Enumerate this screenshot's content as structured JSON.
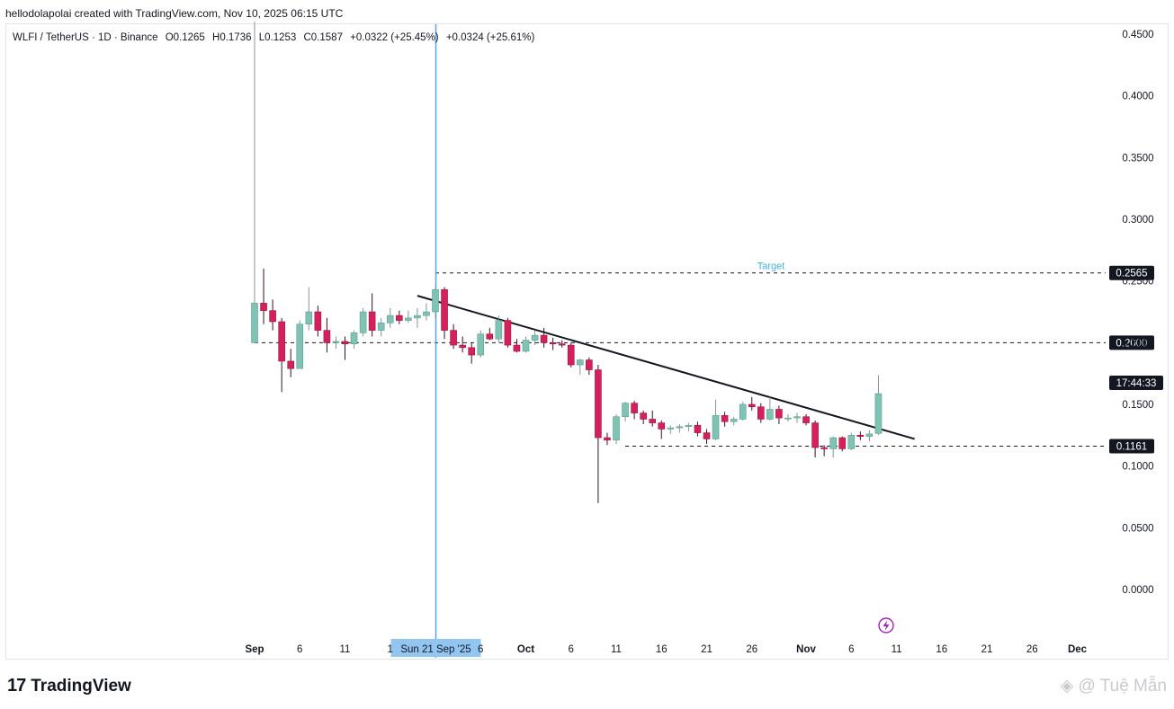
{
  "header": {
    "credit": "hellodolapolai created with TradingView.com, Nov 10, 2025 06:15 UTC"
  },
  "legend": {
    "symbol": "WLFI / TetherUS · 1D · Binance",
    "open": "O0.1265",
    "high": "H0.1736",
    "low": "L0.1253",
    "close": "C0.1587",
    "change": "+0.0322 (+25.45%)",
    "change2": "+0.0324 (+25.61%)"
  },
  "colors": {
    "up": "#7ec3b3",
    "down": "#d6205b",
    "crosshair": "#5aa5e6",
    "target": "#40b2d6"
  },
  "brand": {
    "logo": "17",
    "name": "TradingView"
  },
  "watermark": "◈ @ Tuệ Mẫn",
  "chart_data": {
    "type": "candlestick",
    "y_ticks": [
      "0.4500",
      "0.4000",
      "0.3500",
      "0.3000",
      "0.2500",
      "0.2000",
      "0.1500",
      "0.1000",
      "0.0500",
      "0.0000"
    ],
    "y_tick_values": [
      0.45,
      0.4,
      0.35,
      0.3,
      0.25,
      0.2,
      0.15,
      0.1,
      0.05,
      0.0
    ],
    "ylim": [
      -0.045,
      0.47
    ],
    "x_ticks": [
      {
        "label": "Sep",
        "day": 0,
        "month": true
      },
      {
        "label": "6",
        "day": 5
      },
      {
        "label": "11",
        "day": 10
      },
      {
        "label": "1",
        "day": 15
      },
      {
        "label": "6",
        "day": 25
      },
      {
        "label": "Oct",
        "day": 30,
        "month": true
      },
      {
        "label": "6",
        "day": 35
      },
      {
        "label": "11",
        "day": 40
      },
      {
        "label": "16",
        "day": 45
      },
      {
        "label": "21",
        "day": 50
      },
      {
        "label": "26",
        "day": 55
      },
      {
        "label": "Nov",
        "day": 61,
        "month": true
      },
      {
        "label": "6",
        "day": 66
      },
      {
        "label": "11",
        "day": 71
      },
      {
        "label": "16",
        "day": 76
      },
      {
        "label": "21",
        "day": 81
      },
      {
        "label": "26",
        "day": 86
      },
      {
        "label": "Dec",
        "day": 91,
        "month": true
      }
    ],
    "crosshair": {
      "label": "Sun 21 Sep '25",
      "day": 20
    },
    "levels": [
      {
        "value": 0.2565,
        "label": "0.2565",
        "from_day": 20,
        "text": "Target"
      },
      {
        "value": 0.2,
        "label": "0.2000",
        "from_day": 0
      },
      {
        "value": 0.1161,
        "label": "0.1161",
        "from_day": 41
      }
    ],
    "countdown": {
      "label": "17:44:33",
      "value": 0.1587
    },
    "trendline": {
      "from": [
        18,
        0.238
      ],
      "to": [
        73,
        0.122
      ]
    },
    "candles": [
      [
        0,
        0.2,
        0.46,
        0.2,
        0.232
      ],
      [
        1,
        0.232,
        0.26,
        0.215,
        0.226
      ],
      [
        2,
        0.226,
        0.235,
        0.21,
        0.217
      ],
      [
        3,
        0.217,
        0.22,
        0.16,
        0.185
      ],
      [
        4,
        0.185,
        0.195,
        0.172,
        0.179
      ],
      [
        5,
        0.179,
        0.218,
        0.179,
        0.215
      ],
      [
        6,
        0.215,
        0.245,
        0.21,
        0.225
      ],
      [
        7,
        0.225,
        0.23,
        0.205,
        0.21
      ],
      [
        8,
        0.21,
        0.22,
        0.192,
        0.2
      ],
      [
        9,
        0.2,
        0.205,
        0.195,
        0.201
      ],
      [
        10,
        0.201,
        0.205,
        0.186,
        0.199
      ],
      [
        11,
        0.199,
        0.21,
        0.195,
        0.208
      ],
      [
        12,
        0.208,
        0.228,
        0.205,
        0.225
      ],
      [
        13,
        0.225,
        0.24,
        0.205,
        0.21
      ],
      [
        14,
        0.21,
        0.22,
        0.205,
        0.216
      ],
      [
        15,
        0.216,
        0.228,
        0.212,
        0.222
      ],
      [
        16,
        0.222,
        0.226,
        0.215,
        0.218
      ],
      [
        17,
        0.218,
        0.226,
        0.216,
        0.22
      ],
      [
        18,
        0.22,
        0.228,
        0.212,
        0.222
      ],
      [
        19,
        0.222,
        0.232,
        0.218,
        0.225
      ],
      [
        20,
        0.225,
        0.245,
        0.22,
        0.243
      ],
      [
        21,
        0.243,
        0.245,
        0.203,
        0.21
      ],
      [
        22,
        0.21,
        0.215,
        0.195,
        0.198
      ],
      [
        23,
        0.198,
        0.205,
        0.192,
        0.196
      ],
      [
        24,
        0.196,
        0.2,
        0.183,
        0.19
      ],
      [
        25,
        0.19,
        0.21,
        0.188,
        0.207
      ],
      [
        26,
        0.207,
        0.212,
        0.202,
        0.203
      ],
      [
        27,
        0.203,
        0.222,
        0.2,
        0.218
      ],
      [
        28,
        0.218,
        0.22,
        0.196,
        0.198
      ],
      [
        29,
        0.198,
        0.203,
        0.192,
        0.193
      ],
      [
        30,
        0.193,
        0.205,
        0.192,
        0.202
      ],
      [
        31,
        0.202,
        0.21,
        0.198,
        0.206
      ],
      [
        32,
        0.206,
        0.212,
        0.196,
        0.2
      ],
      [
        33,
        0.2,
        0.204,
        0.194,
        0.199
      ],
      [
        34,
        0.199,
        0.202,
        0.196,
        0.198
      ],
      [
        35,
        0.198,
        0.2,
        0.18,
        0.182
      ],
      [
        36,
        0.182,
        0.187,
        0.174,
        0.186
      ],
      [
        37,
        0.186,
        0.188,
        0.174,
        0.178
      ],
      [
        38,
        0.178,
        0.182,
        0.07,
        0.123
      ],
      [
        39,
        0.123,
        0.127,
        0.117,
        0.121
      ],
      [
        40,
        0.121,
        0.142,
        0.118,
        0.14
      ],
      [
        41,
        0.14,
        0.152,
        0.136,
        0.151
      ],
      [
        42,
        0.151,
        0.153,
        0.138,
        0.143
      ],
      [
        43,
        0.143,
        0.145,
        0.134,
        0.138
      ],
      [
        44,
        0.138,
        0.145,
        0.132,
        0.135
      ],
      [
        45,
        0.135,
        0.137,
        0.122,
        0.13
      ],
      [
        46,
        0.13,
        0.133,
        0.126,
        0.131
      ],
      [
        47,
        0.131,
        0.134,
        0.127,
        0.132
      ],
      [
        48,
        0.132,
        0.135,
        0.128,
        0.133
      ],
      [
        49,
        0.133,
        0.136,
        0.124,
        0.127
      ],
      [
        50,
        0.127,
        0.13,
        0.118,
        0.122
      ],
      [
        51,
        0.122,
        0.154,
        0.121,
        0.141
      ],
      [
        52,
        0.141,
        0.144,
        0.132,
        0.136
      ],
      [
        53,
        0.136,
        0.14,
        0.133,
        0.138
      ],
      [
        54,
        0.138,
        0.152,
        0.137,
        0.15
      ],
      [
        55,
        0.15,
        0.156,
        0.145,
        0.148
      ],
      [
        56,
        0.148,
        0.151,
        0.135,
        0.138
      ],
      [
        57,
        0.138,
        0.156,
        0.137,
        0.146
      ],
      [
        58,
        0.146,
        0.149,
        0.134,
        0.139
      ],
      [
        59,
        0.139,
        0.142,
        0.136,
        0.139
      ],
      [
        60,
        0.139,
        0.143,
        0.135,
        0.14
      ],
      [
        61,
        0.14,
        0.142,
        0.133,
        0.135
      ],
      [
        62,
        0.135,
        0.137,
        0.107,
        0.115
      ],
      [
        63,
        0.115,
        0.117,
        0.108,
        0.114
      ],
      [
        64,
        0.114,
        0.124,
        0.107,
        0.123
      ],
      [
        65,
        0.123,
        0.124,
        0.112,
        0.114
      ],
      [
        66,
        0.114,
        0.127,
        0.113,
        0.125
      ],
      [
        67,
        0.125,
        0.128,
        0.121,
        0.124
      ],
      [
        68,
        0.124,
        0.129,
        0.12,
        0.126
      ],
      [
        69,
        0.1265,
        0.1736,
        0.1253,
        0.1587
      ]
    ]
  }
}
